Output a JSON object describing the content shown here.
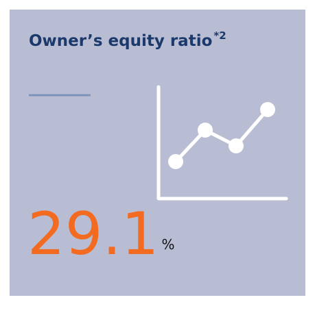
{
  "card": {
    "title": "Owner’s equity ratio",
    "footnote": "*2",
    "value": "29.1",
    "unit": "%"
  }
}
